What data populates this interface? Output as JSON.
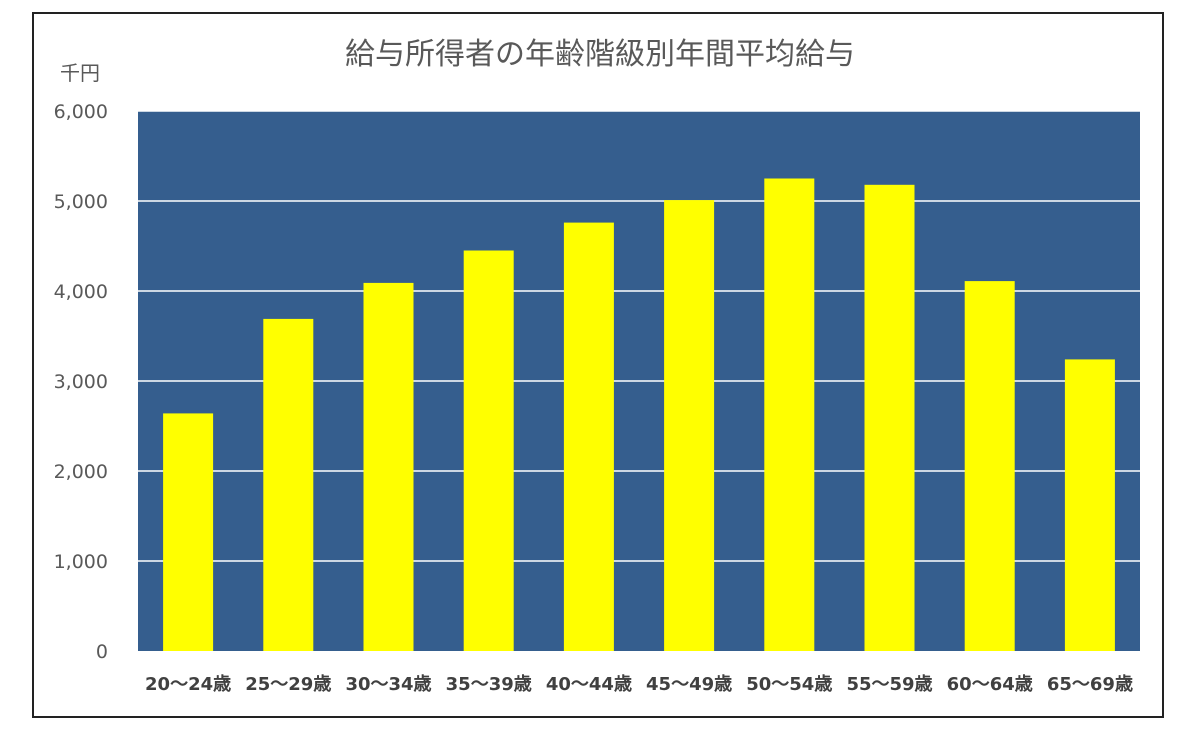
{
  "chart_data": {
    "type": "bar",
    "title": "給与所得者の年齢階級別年間平均給与",
    "ylabel": "千円",
    "xlabel": "",
    "categories": [
      "20～24歳",
      "25～29歳",
      "30～34歳",
      "35～39歳",
      "40～44歳",
      "45～49歳",
      "50～54歳",
      "55～59歳",
      "60～64歳",
      "65～69歳"
    ],
    "values": [
      2640,
      3690,
      4090,
      4450,
      4760,
      5010,
      5250,
      5180,
      4110,
      3240
    ],
    "ylim": [
      0,
      6000
    ],
    "yticks": [
      "0",
      "1,000",
      "2,000",
      "3,000",
      "4,000",
      "5,000",
      "6,000"
    ],
    "grid": true,
    "legend": "none",
    "colors": {
      "bar": "#FFFF00",
      "plot_background": "#355E8E",
      "gridline": "#FFFFFF",
      "text": "#595959"
    }
  }
}
